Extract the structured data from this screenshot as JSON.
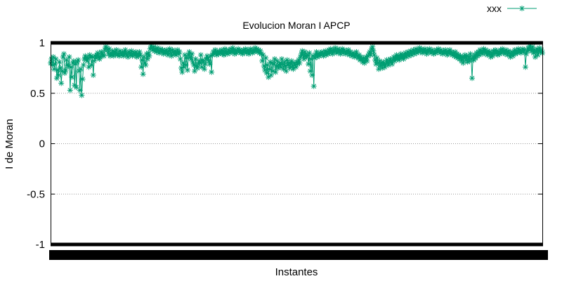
{
  "chart_data": {
    "type": "line",
    "title": "Evolucion Moran I APCP",
    "xlabel": "Instantes",
    "ylabel": "I de Moran",
    "ylim": [
      -1,
      1
    ],
    "yticks": [
      -1,
      -0.5,
      0,
      0.5,
      1
    ],
    "ytick_labels": [
      "-1",
      "-0.5",
      "0",
      "0.5",
      "1"
    ],
    "x_range": [
      0,
      700
    ],
    "grid": "horizontal-dotted",
    "legend_position": "top-right",
    "series": [
      {
        "name": "xxx",
        "color": "#009e73",
        "marker": "asterisk",
        "values": [
          0.8,
          0.84,
          0.78,
          0.86,
          0.74,
          0.79,
          0.84,
          0.65,
          0.73,
          0.68,
          0.81,
          0.75,
          0.6,
          0.72,
          0.86,
          0.89,
          0.7,
          0.73,
          0.83,
          0.78,
          0.77,
          0.86,
          0.53,
          0.76,
          0.66,
          0.8,
          0.82,
          0.58,
          0.79,
          0.56,
          0.81,
          0.83,
          0.72,
          0.53,
          0.74,
          0.48,
          0.64,
          0.78,
          0.84,
          0.87,
          0.85,
          0.82,
          0.85,
          0.76,
          0.88,
          0.86,
          0.78,
          0.86,
          0.68,
          0.82,
          0.87,
          0.85,
          0.88,
          0.9,
          0.86,
          0.84,
          0.86,
          0.91,
          0.89,
          0.88,
          0.87,
          0.93,
          0.96,
          0.95,
          0.93,
          0.89,
          0.94,
          0.87,
          0.9,
          0.88,
          0.92,
          0.87,
          0.91,
          0.89,
          0.93,
          0.88,
          0.89,
          0.87,
          0.92,
          0.9,
          0.88,
          0.91,
          0.87,
          0.9,
          0.93,
          0.89,
          0.88,
          0.86,
          0.91,
          0.9,
          0.88,
          0.92,
          0.87,
          0.89,
          0.9,
          0.88,
          0.91,
          0.86,
          0.89,
          0.87,
          0.91,
          0.88,
          0.76,
          0.83,
          0.69,
          0.86,
          0.8,
          0.78,
          0.89,
          0.84,
          0.9,
          0.87,
          0.94,
          0.97,
          0.95,
          0.93,
          0.96,
          0.92,
          0.94,
          0.91,
          0.95,
          0.93,
          0.9,
          0.92,
          0.94,
          0.91,
          0.93,
          0.89,
          0.92,
          0.9,
          0.93,
          0.91,
          0.88,
          0.92,
          0.94,
          0.9,
          0.87,
          0.93,
          0.91,
          0.89,
          0.92,
          0.88,
          0.9,
          0.93,
          0.89,
          0.91,
          0.84,
          0.75,
          0.71,
          0.8,
          0.76,
          0.88,
          0.78,
          0.85,
          0.73,
          0.88,
          0.91,
          0.86,
          0.84,
          0.89,
          0.81,
          0.78,
          0.72,
          0.84,
          0.77,
          0.75,
          0.79,
          0.82,
          0.8,
          0.88,
          0.76,
          0.83,
          0.81,
          0.74,
          0.79,
          0.84,
          0.87,
          0.85,
          0.82,
          0.79,
          0.87,
          0.71,
          0.88,
          0.91,
          0.89,
          0.93,
          0.9,
          0.88,
          0.92,
          0.89,
          0.91,
          0.9,
          0.93,
          0.89,
          0.92,
          0.88,
          0.94,
          0.9,
          0.91,
          0.89,
          0.93,
          0.92,
          0.9,
          0.94,
          0.91,
          0.95,
          0.92,
          0.89,
          0.93,
          0.9,
          0.92,
          0.94,
          0.91,
          0.93,
          0.9,
          0.92,
          0.89,
          0.93,
          0.91,
          0.94,
          0.9,
          0.92,
          0.93,
          0.89,
          0.91,
          0.94,
          0.92,
          0.9,
          0.93,
          0.91,
          0.95,
          0.92,
          0.94,
          0.91,
          0.93,
          0.9,
          0.92,
          0.89,
          0.82,
          0.88,
          0.77,
          0.73,
          0.85,
          0.7,
          0.78,
          0.66,
          0.74,
          0.81,
          0.68,
          0.8,
          0.72,
          0.79,
          0.84,
          0.71,
          0.77,
          0.82,
          0.75,
          0.78,
          0.8,
          0.76,
          0.84,
          0.79,
          0.74,
          0.81,
          0.77,
          0.72,
          0.83,
          0.78,
          0.8,
          0.75,
          0.79,
          0.82,
          0.77,
          0.74,
          0.8,
          0.78,
          0.76,
          0.81,
          0.79,
          0.83,
          0.8,
          0.86,
          0.89,
          0.92,
          0.88,
          0.84,
          0.91,
          0.87,
          0.86,
          0.88,
          0.79,
          0.9,
          0.72,
          0.84,
          0.68,
          0.87,
          0.57,
          0.85,
          0.88,
          0.91,
          0.86,
          0.89,
          0.87,
          0.9,
          0.88,
          0.91,
          0.89,
          0.87,
          0.9,
          0.92,
          0.88,
          0.91,
          0.89,
          0.93,
          0.9,
          0.94,
          0.92,
          0.89,
          0.93,
          0.91,
          0.95,
          0.92,
          0.9,
          0.94,
          0.91,
          0.93,
          0.89,
          0.92,
          0.94,
          0.9,
          0.93,
          0.91,
          0.89,
          0.92,
          0.9,
          0.93,
          0.88,
          0.91,
          0.89,
          0.87,
          0.9,
          0.88,
          0.86,
          0.89,
          0.91,
          0.87,
          0.85,
          0.88,
          0.83,
          0.86,
          0.84,
          0.81,
          0.85,
          0.8,
          0.83,
          0.86,
          0.82,
          0.87,
          0.89,
          0.91,
          0.88,
          0.94,
          0.96,
          0.92,
          0.88,
          0.83,
          0.79,
          0.85,
          0.8,
          0.74,
          0.82,
          0.77,
          0.8,
          0.75,
          0.81,
          0.78,
          0.76,
          0.79,
          0.83,
          0.8,
          0.78,
          0.82,
          0.84,
          0.81,
          0.79,
          0.83,
          0.86,
          0.82,
          0.85,
          0.88,
          0.84,
          0.87,
          0.83,
          0.86,
          0.89,
          0.85,
          0.88,
          0.84,
          0.87,
          0.9,
          0.86,
          0.89,
          0.91,
          0.87,
          0.9,
          0.92,
          0.88,
          0.91,
          0.93,
          0.89,
          0.92,
          0.94,
          0.9,
          0.93,
          0.91,
          0.95,
          0.92,
          0.94,
          0.9,
          0.93,
          0.91,
          0.94,
          0.92,
          0.89,
          0.93,
          0.91,
          0.94,
          0.92,
          0.9,
          0.93,
          0.91,
          0.89,
          0.92,
          0.9,
          0.93,
          0.91,
          0.94,
          0.92,
          0.9,
          0.93,
          0.91,
          0.89,
          0.92,
          0.9,
          0.93,
          0.91,
          0.88,
          0.92,
          0.9,
          0.93,
          0.89,
          0.91,
          0.88,
          0.9,
          0.87,
          0.91,
          0.86,
          0.89,
          0.85,
          0.88,
          0.84,
          0.87,
          0.82,
          0.86,
          0.8,
          0.85,
          0.88,
          0.83,
          0.87,
          0.81,
          0.86,
          0.82,
          0.89,
          0.84,
          0.65,
          0.86,
          0.83,
          0.88,
          0.85,
          0.9,
          0.87,
          0.91,
          0.88,
          0.93,
          0.9,
          0.92,
          0.89,
          0.94,
          0.91,
          0.93,
          0.9,
          0.88,
          0.92,
          0.89,
          0.91,
          0.86,
          0.9,
          0.87,
          0.92,
          0.89,
          0.93,
          0.9,
          0.92,
          0.88,
          0.91,
          0.89,
          0.93,
          0.9,
          0.94,
          0.91,
          0.92,
          0.89,
          0.93,
          0.91,
          0.88,
          0.92,
          0.9,
          0.86,
          0.89,
          0.91,
          0.87,
          0.9,
          0.93,
          0.89,
          0.92,
          0.9,
          0.94,
          0.91,
          0.93,
          0.9,
          0.92,
          0.94,
          0.91,
          0.93,
          0.76,
          0.89,
          0.92,
          0.95,
          0.93,
          0.97,
          0.94,
          0.92,
          0.96,
          0.9,
          0.93,
          0.86,
          0.91,
          0.94,
          0.88,
          0.92,
          0.95,
          0.91,
          0.93,
          0.9
        ]
      }
    ]
  }
}
